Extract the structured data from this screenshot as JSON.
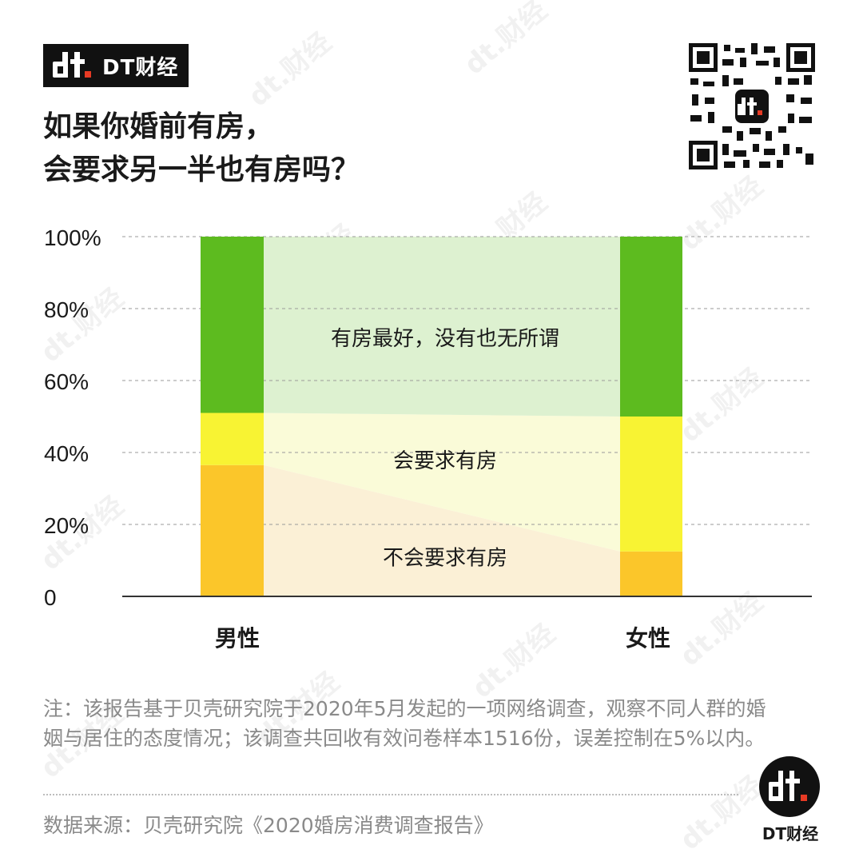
{
  "brand": {
    "name": "DT财经",
    "logo_icon": "dt-logo-icon"
  },
  "title": {
    "line1": "如果你婚前有房，",
    "line2": "会要求另一半也有房吗？"
  },
  "qr": {
    "icon": "qr-code-icon"
  },
  "colors": {
    "no_require": "#FBC62A",
    "require": "#F8F333",
    "either": "#5DBB1F",
    "band_no_require": "#FBF0D6",
    "band_require": "#FAFBD8",
    "band_either": "#DDF1D0",
    "grid": "#9a9a9a",
    "axis": "#333333"
  },
  "chart_data": {
    "type": "bar",
    "stacked": true,
    "categories": [
      "男性",
      "女性"
    ],
    "series": [
      {
        "name": "不会要求有房",
        "values": [
          36.5,
          12.5
        ]
      },
      {
        "name": "会要求有房",
        "values": [
          14.5,
          37.5
        ]
      },
      {
        "name": "有房最好，没有也无所谓",
        "values": [
          49.0,
          50.0
        ]
      }
    ],
    "ylim": [
      0,
      100
    ],
    "yticks": [
      {
        "value": 0,
        "label": "0"
      },
      {
        "value": 20,
        "label": "20%"
      },
      {
        "value": 40,
        "label": "40%"
      },
      {
        "value": 60,
        "label": "60%"
      },
      {
        "value": 80,
        "label": "80%"
      },
      {
        "value": 100,
        "label": "100%"
      }
    ],
    "grid": true,
    "legend": "labels inside bands between bars"
  },
  "note": "注：该报告基于贝壳研究院于2020年5月发起的一项网络调查，观察不同人群的婚姻与居住的态度情况；该调查共回收有效问卷样本1516份，误差控制在5%以内。",
  "source": "数据来源：贝壳研究院《2020婚房消费调查报告》",
  "corner": {
    "brand": "DT财经",
    "logo_icon": "dt-round-logo-icon"
  },
  "watermark_text": "dt.财经"
}
